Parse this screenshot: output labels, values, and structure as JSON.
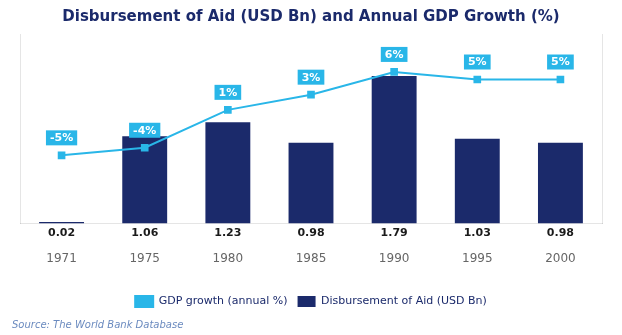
{
  "chart_data": {
    "type": "bar",
    "title": "Disbursement of Aid (USD Bn) and Annual GDP Growth (%)",
    "categories": [
      "1971",
      "1975",
      "1980",
      "1985",
      "1990",
      "1995",
      "2000"
    ],
    "series": [
      {
        "name": "Disbursement of Aid (USD Bn)",
        "type": "bar",
        "color": "#1b2a6b",
        "values": [
          0.02,
          1.06,
          1.23,
          0.98,
          1.79,
          1.03,
          0.98
        ]
      },
      {
        "name": "GDP growth (annual %)",
        "type": "line",
        "color": "#29b6e8",
        "marker": "square",
        "axis": "y2",
        "values": [
          -5,
          -4,
          1,
          3,
          6,
          5,
          5
        ],
        "value_labels": [
          "-5%",
          "-4%",
          "1%",
          "3%",
          "6%",
          "5%",
          "5%"
        ]
      }
    ],
    "ylim": [
      0,
      2.3
    ],
    "y2lim": [
      -14,
      11
    ],
    "tick_labels": "x",
    "grid": false,
    "legend": "bottom",
    "data_labels": true,
    "annotations": [
      "Source: The World Bank Database"
    ]
  }
}
